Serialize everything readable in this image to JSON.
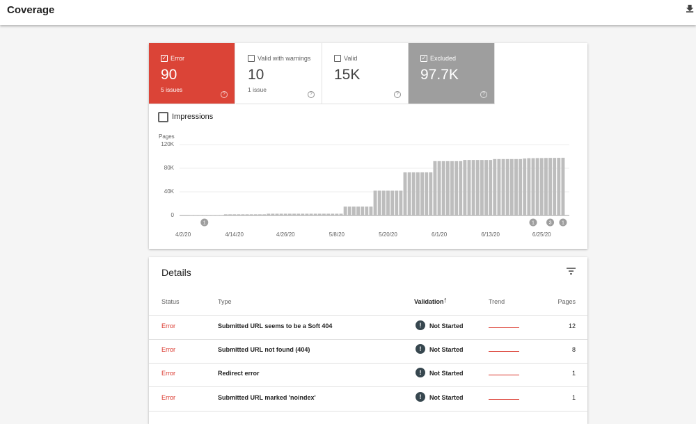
{
  "header": {
    "title": "Coverage"
  },
  "tabs": [
    {
      "label": "Error",
      "value": "90",
      "sub": "5 issues"
    },
    {
      "label": "Valid with warnings",
      "value": "10",
      "sub": "1 issue"
    },
    {
      "label": "Valid",
      "value": "15K"
    },
    {
      "label": "Excluded",
      "value": "97.7K"
    }
  ],
  "impressions": "Impressions",
  "chart_data": {
    "type": "bar",
    "y_label": "Pages",
    "color": "#bdbdbd",
    "grid": true,
    "ylim": [
      0,
      120000
    ],
    "yticks": [
      0,
      {
        "value": 40000,
        "label": "40K"
      },
      {
        "value": 80000,
        "label": "80K"
      },
      {
        "value": 120000,
        "label": "120K"
      }
    ],
    "categories": [
      "4/2/20",
      null,
      null,
      null,
      null,
      null,
      null,
      null,
      null,
      null,
      null,
      null,
      "4/14/20",
      null,
      null,
      null,
      null,
      null,
      null,
      null,
      null,
      null,
      null,
      null,
      "4/26/20",
      null,
      null,
      null,
      null,
      null,
      null,
      null,
      null,
      null,
      null,
      null,
      "5/8/20",
      null,
      null,
      null,
      null,
      null,
      null,
      null,
      null,
      null,
      null,
      null,
      "5/20/20",
      null,
      null,
      null,
      null,
      null,
      null,
      null,
      null,
      null,
      null,
      null,
      "6/1/20",
      null,
      null,
      null,
      null,
      null,
      null,
      null,
      null,
      null,
      null,
      null,
      "6/13/20",
      null,
      null,
      null,
      null,
      null,
      null,
      null,
      null,
      null,
      null,
      null,
      "6/25/20",
      null,
      null,
      null,
      null,
      null
    ],
    "values": [
      0,
      0,
      700,
      700,
      700,
      700,
      700,
      700,
      700,
      700,
      2000,
      2000,
      2000,
      2000,
      2000,
      2000,
      2000,
      2000,
      2000,
      2000,
      3000,
      3000,
      3000,
      3000,
      3000,
      3000,
      3000,
      3000,
      3000,
      3000,
      3000,
      3000,
      3000,
      3000,
      3000,
      3000,
      3000,
      3000,
      15000,
      15000,
      15000,
      15000,
      15000,
      15000,
      15000,
      42000,
      42000,
      42000,
      42000,
      42000,
      42000,
      42000,
      73000,
      73000,
      73000,
      73000,
      73000,
      73000,
      73000,
      92000,
      92000,
      92000,
      92000,
      92000,
      92000,
      92000,
      94000,
      94000,
      94000,
      94000,
      94000,
      94000,
      94000,
      95500,
      95500,
      95500,
      95500,
      95500,
      95500,
      95500,
      96500,
      97000,
      97000,
      97200,
      97200,
      97400,
      97500,
      97500,
      97600,
      97700
    ],
    "annotations": [
      null,
      null,
      null,
      null,
      null,
      1,
      null,
      null,
      null,
      null,
      null,
      null,
      null,
      null,
      null,
      null,
      null,
      null,
      null,
      null,
      null,
      null,
      null,
      null,
      null,
      null,
      null,
      null,
      null,
      null,
      null,
      null,
      null,
      null,
      null,
      null,
      null,
      null,
      null,
      null,
      null,
      null,
      null,
      null,
      null,
      null,
      null,
      null,
      null,
      null,
      null,
      null,
      null,
      null,
      null,
      null,
      null,
      null,
      null,
      null,
      null,
      null,
      null,
      null,
      null,
      null,
      null,
      null,
      null,
      null,
      null,
      null,
      null,
      null,
      null,
      null,
      null,
      null,
      null,
      null,
      null,
      null,
      1,
      null,
      null,
      null,
      3,
      null,
      null,
      1
    ]
  },
  "details": {
    "title": "Details",
    "columns": [
      "Status",
      "Type",
      "Validation",
      "Trend",
      "Pages"
    ],
    "rows": [
      [
        "Error",
        "Submitted URL seems to be a Soft 404",
        "Not Started",
        12
      ],
      [
        "Error",
        "Submitted URL not found (404)",
        "Not Started",
        8
      ],
      [
        "Error",
        "Redirect error",
        "Not Started",
        1
      ],
      [
        "Error",
        "Submitted URL marked 'noindex'",
        "Not Started",
        1
      ]
    ]
  }
}
